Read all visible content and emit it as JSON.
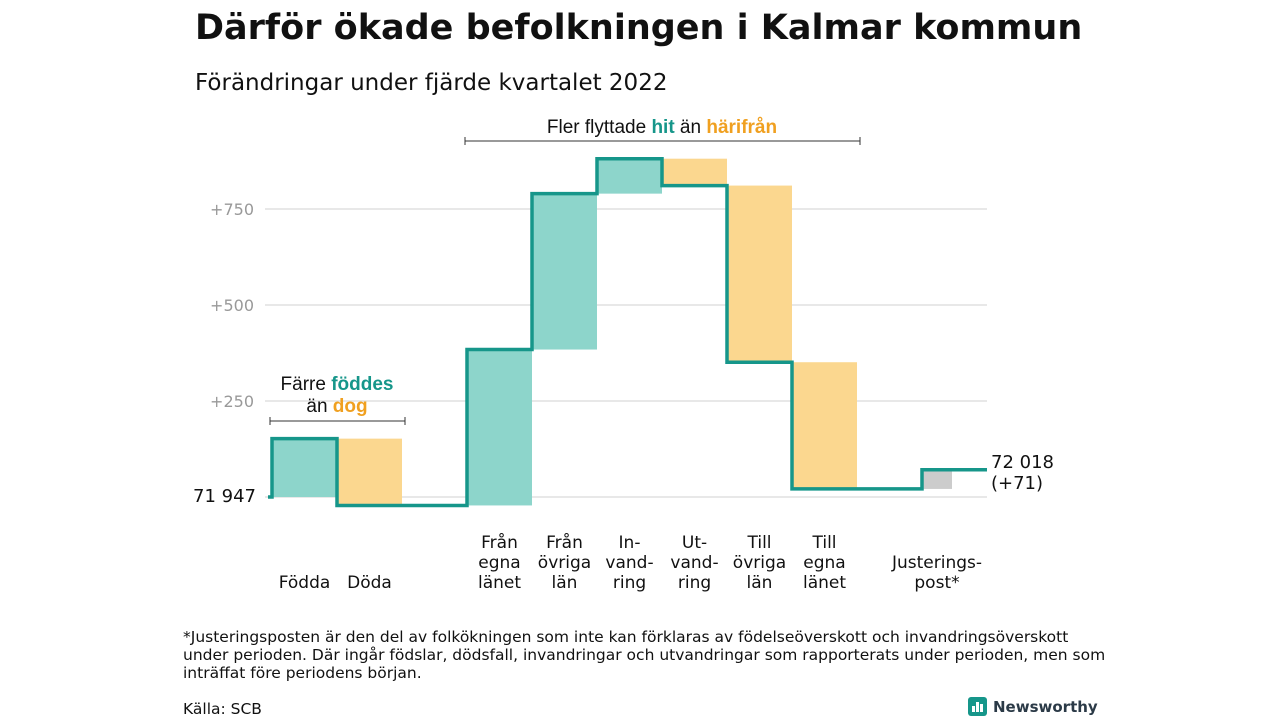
{
  "title": "Därför ökade befolkningen i Kalmar kommun",
  "subtitle": "Förändringar under fjärde kvartalet 2022",
  "annotations": {
    "moved_prefix": "Fler flyttade ",
    "moved_hit": "hit",
    "moved_mid": " än ",
    "moved_harifran": "härifrån",
    "born_line1_prefix": "Färre ",
    "born_fodde": "föddes",
    "born_line2_prefix": "än ",
    "born_dog": "dog"
  },
  "start_label": "71 947",
  "end_label": {
    "line1": "72 018",
    "line2": "(+71)"
  },
  "footnote": "*Justeringsposten är den del av folkökningen som inte kan förklaras av födelseöverskott och invandringsöverskott under perioden. Där ingår födslar, dödsfall, invandringar och utvandringar som rapporterats under perioden, men som inträffat före periodens början.",
  "source": "Källa: SCB",
  "brand": "Newsworthy",
  "colors": {
    "increase": "#8dd5cb",
    "decrease": "#fbd78f",
    "line": "#16968a",
    "adjustment": "#cccccc",
    "hit": "#16968a",
    "harifran": "#f0a020",
    "grid": "#e0e0e0",
    "tick": "#999999"
  },
  "chart_data": {
    "type": "waterfall",
    "baseline": 71947,
    "end_total": 72018,
    "net_change": 71,
    "ylabel": "",
    "yticks": [
      250,
      500,
      750
    ],
    "ytick_labels": [
      "+250",
      "+500",
      "+750"
    ],
    "ylim": [
      -20,
      900
    ],
    "steps": [
      {
        "label_lines": [
          "Födda"
        ],
        "value": 152,
        "kind": "increase"
      },
      {
        "label_lines": [
          "Döda"
        ],
        "value": -174,
        "kind": "decrease"
      },
      {
        "label_lines": [
          "Från",
          "egna",
          "länet"
        ],
        "value": 406,
        "kind": "increase"
      },
      {
        "label_lines": [
          "Från",
          "övriga",
          "län"
        ],
        "value": 406,
        "kind": "increase"
      },
      {
        "label_lines": [
          "In-",
          "vand-",
          "ring"
        ],
        "value": 91,
        "kind": "increase"
      },
      {
        "label_lines": [
          "Ut-",
          "vand-",
          "ring"
        ],
        "value": -70,
        "kind": "decrease"
      },
      {
        "label_lines": [
          "Till",
          "övriga",
          "län"
        ],
        "value": -460,
        "kind": "decrease"
      },
      {
        "label_lines": [
          "Till",
          "egna",
          "länet"
        ],
        "value": -330,
        "kind": "decrease"
      },
      {
        "label_lines": [
          "Justerings-",
          "post*"
        ],
        "value": 50,
        "kind": "adjustment"
      }
    ]
  }
}
